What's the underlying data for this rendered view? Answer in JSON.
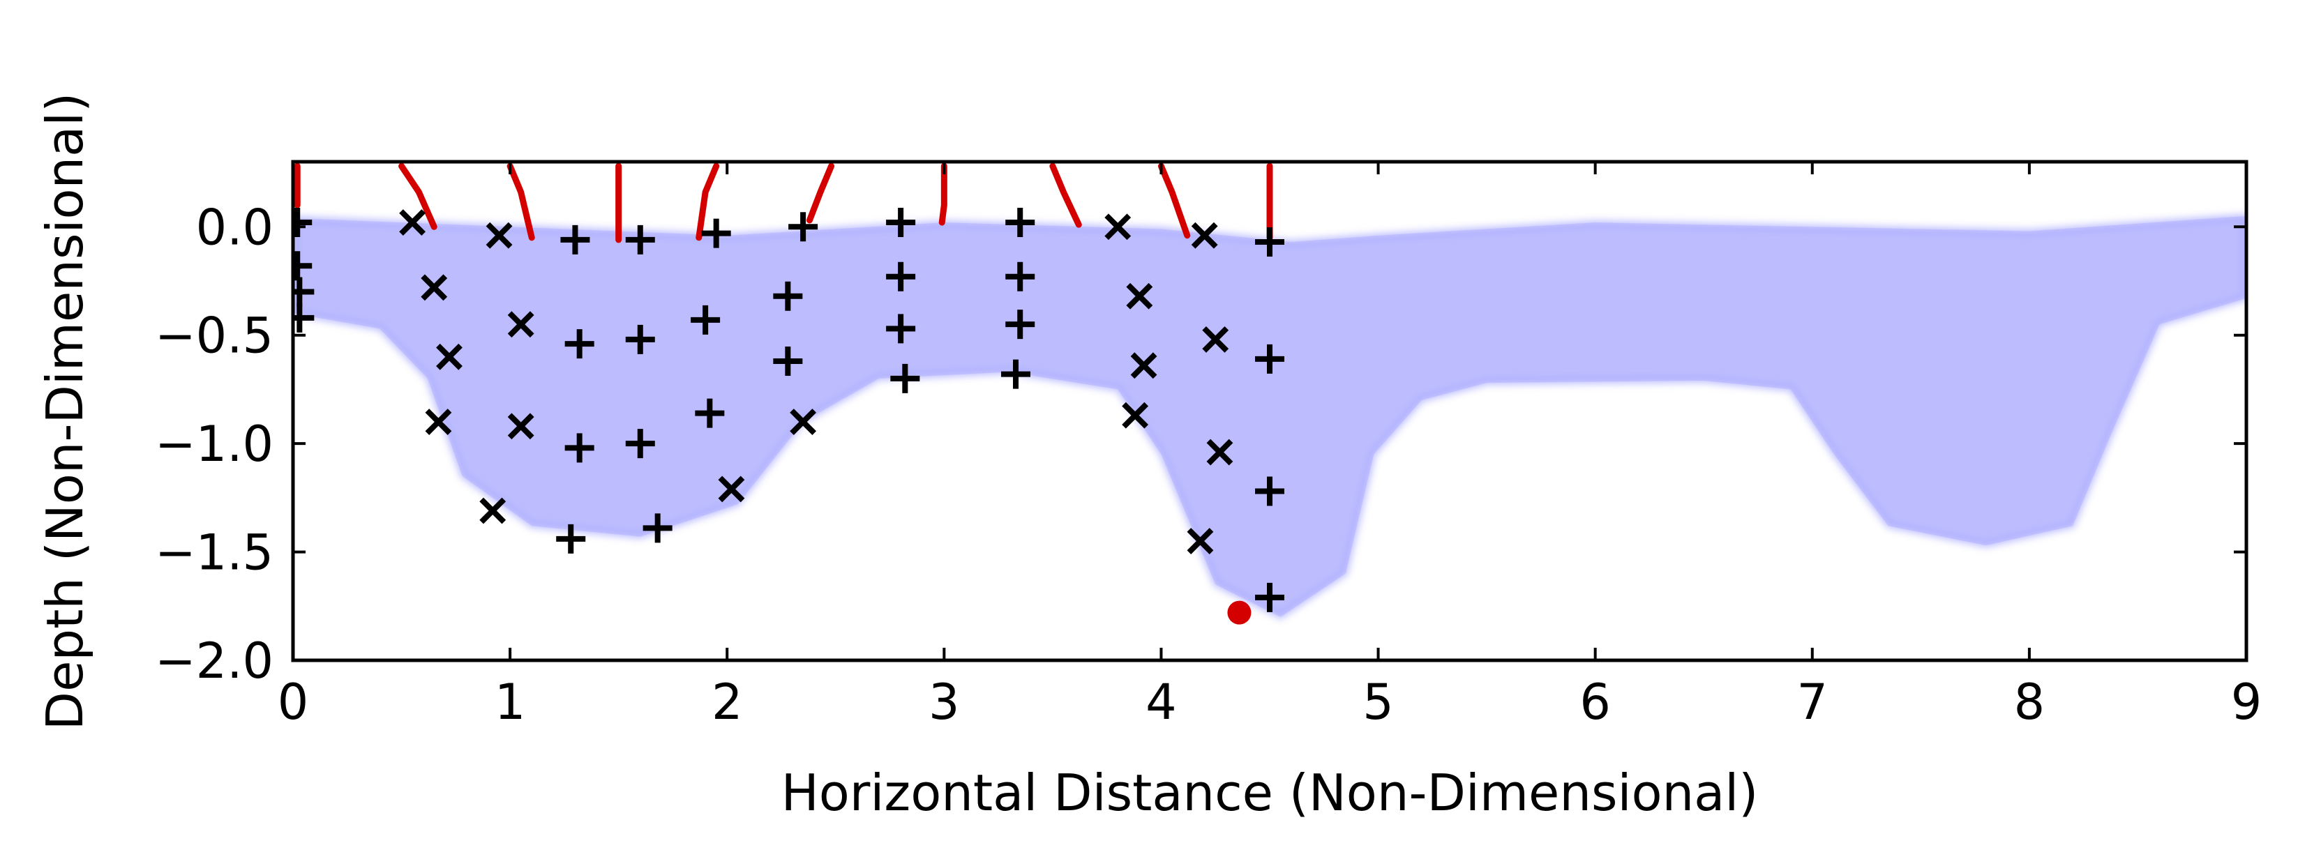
{
  "chart_data": {
    "type": "scatter",
    "title": "",
    "xlabel": "Horizontal Distance (Non-Dimensional)",
    "ylabel": "Depth (Non-Dimensional)",
    "xlim": [
      0,
      9
    ],
    "ylim": [
      -2.0,
      0.3
    ],
    "x_ticks": [
      0,
      1,
      2,
      3,
      4,
      5,
      6,
      7,
      8,
      9
    ],
    "x_tick_labels": [
      "0",
      "1",
      "2",
      "3",
      "4",
      "5",
      "6",
      "7",
      "8",
      "9"
    ],
    "y_ticks": [
      0.0,
      -0.5,
      -1.0,
      -1.5,
      -2.0
    ],
    "y_tick_labels": [
      "0.0",
      "−0.5",
      "−1.0",
      "−1.5",
      "−2.0"
    ],
    "grid": false,
    "legend": "none",
    "colors": {
      "particles": "#0000ff",
      "tracks": "#d40000",
      "markers": "#000000",
      "highlight": "#d40000"
    },
    "particle_region": {
      "description_hint": "dense cloud of translucent blue particles forming three basins",
      "top": [
        [
          0,
          0.04
        ],
        [
          1,
          0.0
        ],
        [
          2,
          -0.04
        ],
        [
          3,
          0.02
        ],
        [
          4,
          -0.01
        ],
        [
          4.6,
          -0.07
        ],
        [
          5,
          -0.04
        ],
        [
          6,
          0.02
        ],
        [
          7,
          0.0
        ],
        [
          8,
          -0.02
        ],
        [
          9,
          0.05
        ]
      ],
      "bottom": [
        [
          0,
          -0.4
        ],
        [
          0.4,
          -0.47
        ],
        [
          0.62,
          -0.7
        ],
        [
          0.78,
          -1.15
        ],
        [
          1.1,
          -1.38
        ],
        [
          1.6,
          -1.43
        ],
        [
          2.05,
          -1.28
        ],
        [
          2.35,
          -0.9
        ],
        [
          2.7,
          -0.7
        ],
        [
          3.3,
          -0.67
        ],
        [
          3.8,
          -0.75
        ],
        [
          4.0,
          -1.05
        ],
        [
          4.25,
          -1.65
        ],
        [
          4.55,
          -1.8
        ],
        [
          4.85,
          -1.6
        ],
        [
          4.98,
          -1.05
        ],
        [
          5.2,
          -0.8
        ],
        [
          5.5,
          -0.72
        ],
        [
          6.5,
          -0.71
        ],
        [
          6.9,
          -0.75
        ],
        [
          7.1,
          -1.05
        ],
        [
          7.35,
          -1.38
        ],
        [
          7.8,
          -1.47
        ],
        [
          8.2,
          -1.38
        ],
        [
          8.38,
          -0.95
        ],
        [
          8.6,
          -0.45
        ],
        [
          9,
          -0.33
        ]
      ]
    },
    "tracks": [
      {
        "points": [
          [
            0.02,
            0.28
          ],
          [
            0.02,
            0.1
          ]
        ]
      },
      {
        "points": [
          [
            0.5,
            0.28
          ],
          [
            0.58,
            0.16
          ],
          [
            0.65,
            0.0
          ]
        ]
      },
      {
        "points": [
          [
            1.0,
            0.28
          ],
          [
            1.05,
            0.16
          ],
          [
            1.1,
            -0.05
          ]
        ]
      },
      {
        "points": [
          [
            1.5,
            0.28
          ],
          [
            1.5,
            0.1
          ],
          [
            1.5,
            -0.06
          ]
        ]
      },
      {
        "points": [
          [
            1.95,
            0.28
          ],
          [
            1.9,
            0.16
          ],
          [
            1.87,
            -0.05
          ]
        ]
      },
      {
        "points": [
          [
            2.48,
            0.28
          ],
          [
            2.43,
            0.16
          ],
          [
            2.38,
            0.03
          ]
        ]
      },
      {
        "points": [
          [
            3.0,
            0.28
          ],
          [
            3.0,
            0.1
          ],
          [
            2.99,
            0.02
          ]
        ]
      },
      {
        "points": [
          [
            3.5,
            0.28
          ],
          [
            3.55,
            0.16
          ],
          [
            3.62,
            0.01
          ]
        ]
      },
      {
        "points": [
          [
            4.0,
            0.28
          ],
          [
            4.05,
            0.16
          ],
          [
            4.12,
            -0.04
          ]
        ]
      },
      {
        "points": [
          [
            4.5,
            0.28
          ],
          [
            4.5,
            0.1
          ],
          [
            4.5,
            -0.05
          ]
        ]
      }
    ],
    "markers": [
      {
        "x": 0.02,
        "y": 0.02,
        "sym": "+"
      },
      {
        "x": 0.02,
        "y": -0.18,
        "sym": "+"
      },
      {
        "x": 0.03,
        "y": -0.3,
        "sym": "+"
      },
      {
        "x": 0.03,
        "y": -0.42,
        "sym": "+"
      },
      {
        "x": 0.55,
        "y": 0.02,
        "sym": "x"
      },
      {
        "x": 0.65,
        "y": -0.28,
        "sym": "x"
      },
      {
        "x": 0.72,
        "y": -0.6,
        "sym": "x"
      },
      {
        "x": 0.67,
        "y": -0.9,
        "sym": "x"
      },
      {
        "x": 0.92,
        "y": -1.31,
        "sym": "x"
      },
      {
        "x": 0.95,
        "y": -0.04,
        "sym": "x"
      },
      {
        "x": 1.05,
        "y": -0.45,
        "sym": "x"
      },
      {
        "x": 1.05,
        "y": -0.92,
        "sym": "x"
      },
      {
        "x": 1.3,
        "y": -0.06,
        "sym": "+"
      },
      {
        "x": 1.32,
        "y": -0.54,
        "sym": "+"
      },
      {
        "x": 1.32,
        "y": -1.02,
        "sym": "+"
      },
      {
        "x": 1.28,
        "y": -1.44,
        "sym": "+"
      },
      {
        "x": 1.6,
        "y": -0.06,
        "sym": "+"
      },
      {
        "x": 1.6,
        "y": -0.52,
        "sym": "+"
      },
      {
        "x": 1.6,
        "y": -1.0,
        "sym": "+"
      },
      {
        "x": 1.68,
        "y": -1.39,
        "sym": "+"
      },
      {
        "x": 1.95,
        "y": -0.03,
        "sym": "+"
      },
      {
        "x": 1.9,
        "y": -0.43,
        "sym": "+"
      },
      {
        "x": 1.92,
        "y": -0.86,
        "sym": "+"
      },
      {
        "x": 2.02,
        "y": -1.21,
        "sym": "x"
      },
      {
        "x": 2.35,
        "y": 0.0,
        "sym": "+"
      },
      {
        "x": 2.28,
        "y": -0.32,
        "sym": "+"
      },
      {
        "x": 2.28,
        "y": -0.62,
        "sym": "+"
      },
      {
        "x": 2.35,
        "y": -0.9,
        "sym": "x"
      },
      {
        "x": 2.8,
        "y": 0.02,
        "sym": "+"
      },
      {
        "x": 2.8,
        "y": -0.23,
        "sym": "+"
      },
      {
        "x": 2.8,
        "y": -0.47,
        "sym": "+"
      },
      {
        "x": 2.82,
        "y": -0.7,
        "sym": "+"
      },
      {
        "x": 3.35,
        "y": 0.02,
        "sym": "+"
      },
      {
        "x": 3.35,
        "y": -0.23,
        "sym": "+"
      },
      {
        "x": 3.35,
        "y": -0.45,
        "sym": "+"
      },
      {
        "x": 3.33,
        "y": -0.68,
        "sym": "+"
      },
      {
        "x": 3.8,
        "y": 0.0,
        "sym": "x"
      },
      {
        "x": 3.9,
        "y": -0.32,
        "sym": "x"
      },
      {
        "x": 3.92,
        "y": -0.64,
        "sym": "x"
      },
      {
        "x": 3.88,
        "y": -0.87,
        "sym": "x"
      },
      {
        "x": 4.2,
        "y": -0.04,
        "sym": "x"
      },
      {
        "x": 4.25,
        "y": -0.52,
        "sym": "x"
      },
      {
        "x": 4.27,
        "y": -1.04,
        "sym": "x"
      },
      {
        "x": 4.18,
        "y": -1.45,
        "sym": "x"
      },
      {
        "x": 4.5,
        "y": -0.07,
        "sym": "+"
      },
      {
        "x": 4.5,
        "y": -0.61,
        "sym": "+"
      },
      {
        "x": 4.5,
        "y": -1.22,
        "sym": "+"
      },
      {
        "x": 4.5,
        "y": -1.71,
        "sym": "+"
      }
    ],
    "highlight_point": {
      "x": 4.36,
      "y": -1.78
    }
  }
}
